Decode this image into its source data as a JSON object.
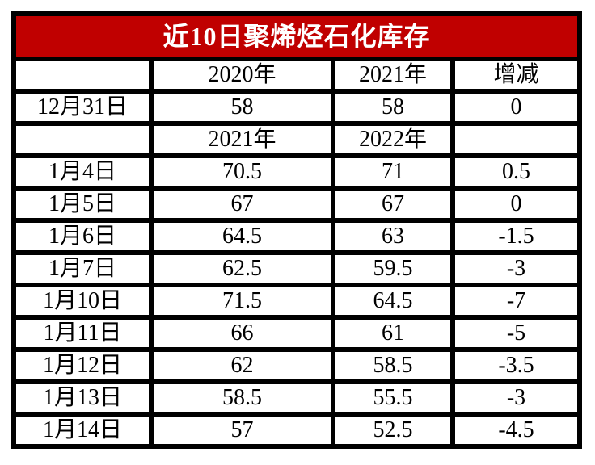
{
  "title": "近10日聚烯烃石化库存",
  "colors": {
    "title_bg": "#c00000",
    "title_text": "#ffffff",
    "border": "#000000",
    "cell_bg": "#ffffff",
    "cell_text": "#000000"
  },
  "chart_data": {
    "type": "table",
    "title": "近10日聚烯烃石化库存",
    "header_rows": [
      [
        "",
        "2020年",
        "2021年",
        "增减"
      ],
      [
        "",
        "2021年",
        "2022年",
        ""
      ]
    ],
    "rows": [
      [
        "",
        "2020年",
        "2021年",
        "增减"
      ],
      [
        "12月31日",
        "58",
        "58",
        "0"
      ],
      [
        "",
        "2021年",
        "2022年",
        ""
      ],
      [
        "1月4日",
        "70.5",
        "71",
        "0.5"
      ],
      [
        "1月5日",
        "67",
        "67",
        "0"
      ],
      [
        "1月6日",
        "64.5",
        "63",
        "-1.5"
      ],
      [
        "1月7日",
        "62.5",
        "59.5",
        "-3"
      ],
      [
        "1月10日",
        "71.5",
        "64.5",
        "-7"
      ],
      [
        "1月11日",
        "66",
        "61",
        "-5"
      ],
      [
        "1月12日",
        "62",
        "58.5",
        "-3.5"
      ],
      [
        "1月13日",
        "58.5",
        "55.5",
        "-3"
      ],
      [
        "1月14日",
        "57",
        "52.5",
        "-4.5"
      ]
    ]
  }
}
